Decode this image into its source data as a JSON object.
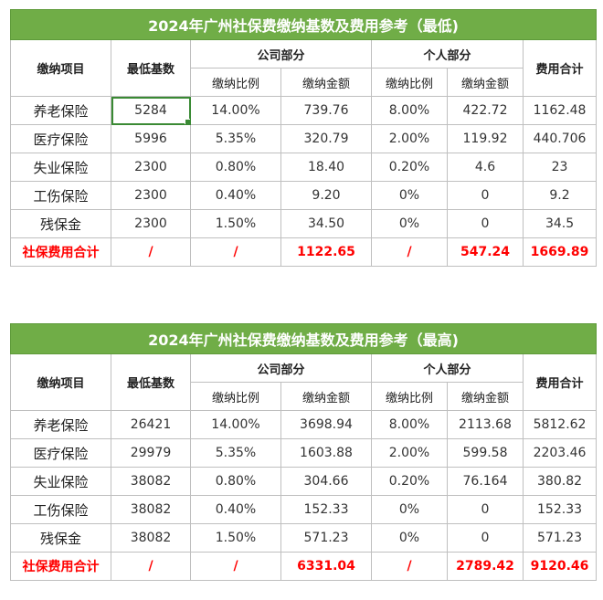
{
  "headers": {
    "item": "缴纳项目",
    "base": "最低基数",
    "company": "公司部分",
    "personal": "个人部分",
    "total": "费用合计",
    "rate": "缴纳比例",
    "amount": "缴纳金额"
  },
  "tables": [
    {
      "title": "2024年广州社保费缴纳基数及费用参考（最低)",
      "rows": [
        {
          "name": "养老保险",
          "base": "5284",
          "c_rate": "14.00%",
          "c_amount": "739.76",
          "p_rate": "8.00%",
          "p_amount": "422.72",
          "total": "1162.48"
        },
        {
          "name": "医疗保险",
          "base": "5996",
          "c_rate": "5.35%",
          "c_amount": "320.79",
          "p_rate": "2.00%",
          "p_amount": "119.92",
          "total": "440.706"
        },
        {
          "name": "失业保险",
          "base": "2300",
          "c_rate": "0.80%",
          "c_amount": "18.40",
          "p_rate": "0.20%",
          "p_amount": "4.6",
          "total": "23"
        },
        {
          "name": "工伤保险",
          "base": "2300",
          "c_rate": "0.40%",
          "c_amount": "9.20",
          "p_rate": "0%",
          "p_amount": "0",
          "total": "9.2"
        },
        {
          "name": "残保金",
          "base": "2300",
          "c_rate": "1.50%",
          "c_amount": "34.50",
          "p_rate": "0%",
          "p_amount": "0",
          "total": "34.5"
        }
      ],
      "summary": {
        "name": "社保费用合计",
        "base": "/",
        "c_rate": "/",
        "c_amount": "1122.65",
        "p_rate": "/",
        "p_amount": "547.24",
        "total": "1669.89"
      }
    },
    {
      "title": "2024年广州社保费缴纳基数及费用参考（最高)",
      "rows": [
        {
          "name": "养老保险",
          "base": "26421",
          "c_rate": "14.00%",
          "c_amount": "3698.94",
          "p_rate": "8.00%",
          "p_amount": "2113.68",
          "total": "5812.62"
        },
        {
          "name": "医疗保险",
          "base": "29979",
          "c_rate": "5.35%",
          "c_amount": "1603.88",
          "p_rate": "2.00%",
          "p_amount": "599.58",
          "total": "2203.46"
        },
        {
          "name": "失业保险",
          "base": "38082",
          "c_rate": "0.80%",
          "c_amount": "304.66",
          "p_rate": "0.20%",
          "p_amount": "76.164",
          "total": "380.82"
        },
        {
          "name": "工伤保险",
          "base": "38082",
          "c_rate": "0.40%",
          "c_amount": "152.33",
          "p_rate": "0%",
          "p_amount": "0",
          "total": "152.33"
        },
        {
          "name": "残保金",
          "base": "38082",
          "c_rate": "1.50%",
          "c_amount": "571.23",
          "p_rate": "0%",
          "p_amount": "0",
          "total": "571.23"
        }
      ],
      "summary": {
        "name": "社保费用合计",
        "base": "/",
        "c_rate": "/",
        "c_amount": "6331.04",
        "p_rate": "/",
        "p_amount": "2789.42",
        "total": "9120.46"
      }
    }
  ]
}
